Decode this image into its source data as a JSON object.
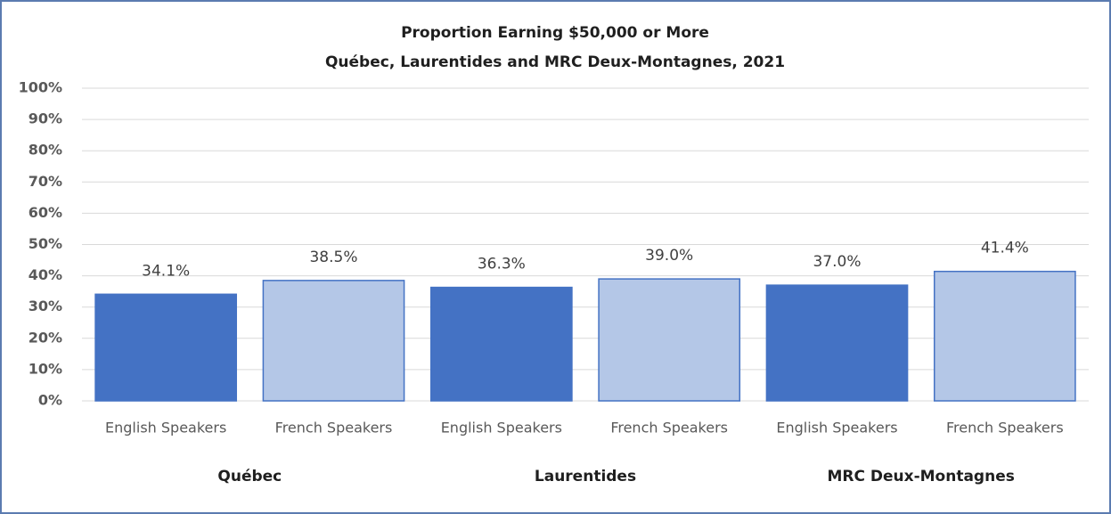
{
  "chart_data": {
    "type": "bar",
    "title": "Proportion Earning $50,000 or More",
    "subtitle": "Québec, Laurentides and MRC Deux-Montagnes, 2021",
    "categories": [
      "English Speakers",
      "French Speakers",
      "English Speakers",
      "French Speakers",
      "English Speakers",
      "French Speakers"
    ],
    "groups": [
      "Québec",
      "Laurentides",
      "MRC Deux-Montagnes"
    ],
    "values": [
      34.1,
      38.5,
      36.3,
      39.0,
      37.0,
      41.4
    ],
    "value_labels": [
      "34.1%",
      "38.5%",
      "36.3%",
      "39.0%",
      "37.0%",
      "41.4%"
    ],
    "colors": [
      "#4472c4",
      "#b4c7e7",
      "#4472c4",
      "#b4c7e7",
      "#4472c4",
      "#b4c7e7"
    ],
    "edge_color": "#4472c4",
    "ylim": [
      0,
      100
    ],
    "yticks": [
      {
        "value": 0,
        "label": "0%"
      },
      {
        "value": 10,
        "label": "10%"
      },
      {
        "value": 20,
        "label": "20%"
      },
      {
        "value": 30,
        "label": "30%"
      },
      {
        "value": 40,
        "label": "40%"
      },
      {
        "value": 50,
        "label": "50%"
      },
      {
        "value": 60,
        "label": "60%"
      },
      {
        "value": 70,
        "label": "70%"
      },
      {
        "value": 80,
        "label": "80%"
      },
      {
        "value": 90,
        "label": "90%"
      },
      {
        "value": 100,
        "label": "100%"
      }
    ],
    "grid": true
  }
}
